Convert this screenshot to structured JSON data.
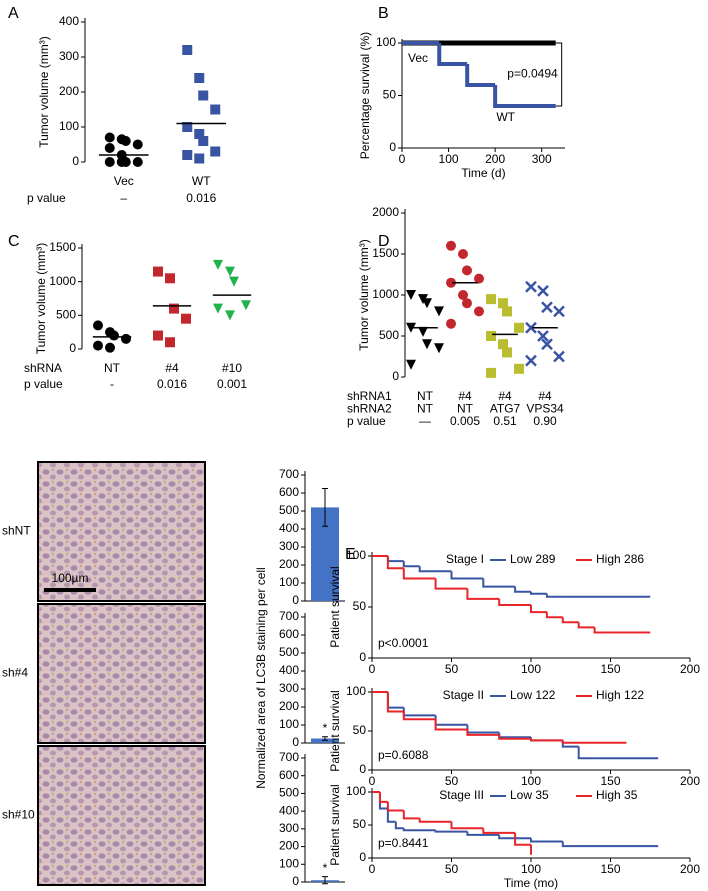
{
  "chart_data": [
    {
      "type": "dot",
      "panel": "A",
      "ylabel": "Tumor volume (mm³)",
      "ylim": [
        0,
        400
      ],
      "yticks": [
        0,
        100,
        200,
        300,
        400
      ],
      "groups": [
        {
          "name": "Vec",
          "color": "#000000",
          "marker": "circle",
          "values": [
            70,
            65,
            60,
            50,
            40,
            20,
            0,
            0,
            0,
            0
          ],
          "mean": 20
        },
        {
          "name": "WT",
          "color": "#3a54a4",
          "marker": "square",
          "values": [
            320,
            240,
            190,
            150,
            100,
            80,
            60,
            30,
            20,
            10
          ],
          "mean": 110
        }
      ],
      "rows": [
        {
          "label": "p value",
          "values": [
            "–",
            "0.016"
          ]
        }
      ]
    },
    {
      "type": "line",
      "panel": "B",
      "step": true,
      "ylabel": "Percentage survival (%)",
      "xlabel": "Time (d)",
      "annotation": "p=0.0494",
      "xlim": [
        0,
        350
      ],
      "xticks": [
        0,
        100,
        200,
        300
      ],
      "ylim": [
        0,
        100
      ],
      "yticks": [
        0,
        50,
        100
      ],
      "series": [
        {
          "name": "Vec",
          "color": "#000000",
          "x": [
            0,
            330
          ],
          "values": [
            100,
            100
          ]
        },
        {
          "name": "WT",
          "color": "#3a54a4",
          "x": [
            0,
            80,
            140,
            200,
            330
          ],
          "values": [
            100,
            80,
            60,
            40,
            40
          ]
        }
      ]
    },
    {
      "type": "dot",
      "panel": "C",
      "ylabel": "Tumor volume (mm³)",
      "ylim": [
        0,
        1500
      ],
      "yticks": [
        0,
        500,
        1000,
        1500
      ],
      "groups": [
        {
          "color": "#000000",
          "marker": "circle",
          "values": [
            350,
            250,
            200,
            150,
            50,
            20
          ],
          "mean": 180
        },
        {
          "color": "#c1272d",
          "marker": "square",
          "values": [
            1150,
            1050,
            600,
            450,
            200,
            100
          ],
          "mean": 640
        },
        {
          "color": "#22b24c",
          "marker": "triangle",
          "values": [
            1250,
            1150,
            1000,
            650,
            600,
            500
          ],
          "mean": 800
        }
      ],
      "rows": [
        {
          "label": "shRNA",
          "values": [
            "NT",
            "#4",
            "#10"
          ]
        },
        {
          "label": "p value",
          "values": [
            "-",
            "0.016",
            "0.001"
          ]
        }
      ]
    },
    {
      "type": "dot",
      "panel": "D",
      "ylabel": "Tumor volume (mm³)",
      "ylim": [
        0,
        2000
      ],
      "yticks": [
        0,
        500,
        1000,
        1500,
        2000
      ],
      "groups": [
        {
          "color": "#000000",
          "marker": "triangle",
          "values": [
            1000,
            950,
            900,
            800,
            600,
            550,
            400,
            350,
            150
          ],
          "mean": 600
        },
        {
          "color": "#c1272d",
          "marker": "circle",
          "values": [
            1600,
            1500,
            1300,
            1200,
            1150,
            1000,
            900,
            800,
            650
          ],
          "mean": 1150
        },
        {
          "color": "#b9bd2f",
          "marker": "square",
          "values": [
            950,
            900,
            800,
            600,
            500,
            400,
            300,
            100,
            50
          ],
          "mean": 520
        },
        {
          "color": "#3a54a4",
          "marker": "cross",
          "values": [
            1100,
            1050,
            850,
            800,
            600,
            500,
            400,
            250,
            200
          ],
          "mean": 600
        }
      ],
      "rows": [
        {
          "label": "shRNA1",
          "values": [
            "NT",
            "#4",
            "#4",
            "#4"
          ]
        },
        {
          "label": "shRNA2",
          "values": [
            "NT",
            "NT",
            "ATG7",
            "VPS34"
          ]
        },
        {
          "label": "p value",
          "values": [
            "—",
            "0.005",
            "0.51",
            "0.90"
          ]
        }
      ]
    },
    {
      "type": "bar",
      "ylabel": "Normalized area of LC3B staining per cell",
      "color": "#4472c4",
      "ylim": [
        0,
        700
      ],
      "yticks": [
        0,
        100,
        200,
        300,
        400,
        500,
        600,
        700
      ],
      "values": [
        520
      ],
      "errors": [
        105
      ]
    },
    {
      "type": "bar",
      "color": "#4472c4",
      "annotation": "*",
      "ylim": [
        0,
        700
      ],
      "yticks": [
        0,
        100,
        200,
        300,
        400,
        500,
        600,
        700
      ],
      "values": [
        25
      ],
      "errors": [
        10
      ]
    },
    {
      "type": "bar",
      "color": "#4472c4",
      "annotation": "*",
      "ylim": [
        0,
        700
      ],
      "yticks": [
        0,
        100,
        200,
        300,
        400,
        500,
        600,
        700
      ],
      "values": [
        10
      ],
      "errors": [
        20
      ]
    },
    {
      "type": "line",
      "panel": "E",
      "step": true,
      "title": "Stage I",
      "ylabel": "Patient survival",
      "annotation": "p<0.0001",
      "xlim": [
        0,
        200
      ],
      "xticks": [
        0,
        50,
        100,
        150,
        200
      ],
      "ylim": [
        0,
        100
      ],
      "yticks": [
        0,
        50,
        100
      ],
      "series": [
        {
          "name": "Low 289",
          "color": "#3a54a4",
          "x": [
            0,
            10,
            20,
            30,
            50,
            70,
            90,
            100,
            110,
            120,
            175
          ],
          "values": [
            100,
            95,
            90,
            85,
            78,
            70,
            65,
            63,
            60,
            60,
            60
          ]
        },
        {
          "name": "High 286",
          "color": "#e8262a",
          "x": [
            0,
            10,
            20,
            40,
            60,
            80,
            100,
            110,
            120,
            130,
            140,
            175
          ],
          "values": [
            100,
            88,
            78,
            68,
            58,
            52,
            45,
            40,
            35,
            30,
            25,
            25
          ]
        }
      ]
    },
    {
      "type": "line",
      "step": true,
      "title": "Stage II",
      "ylabel": "Patient survival",
      "annotation": "p=0.6088",
      "xlim": [
        0,
        200
      ],
      "xticks": [
        0,
        50,
        100,
        150,
        200
      ],
      "ylim": [
        0,
        100
      ],
      "yticks": [
        0,
        50,
        100
      ],
      "series": [
        {
          "name": "Low 122",
          "color": "#3a54a4",
          "x": [
            0,
            10,
            20,
            40,
            60,
            80,
            100,
            120,
            130,
            140,
            180
          ],
          "values": [
            100,
            80,
            70,
            58,
            48,
            42,
            38,
            30,
            15,
            15,
            15
          ]
        },
        {
          "name": "High 122",
          "color": "#e8262a",
          "x": [
            0,
            10,
            20,
            40,
            60,
            80,
            100,
            120,
            160
          ],
          "values": [
            100,
            75,
            65,
            52,
            45,
            40,
            38,
            35,
            35
          ]
        }
      ]
    },
    {
      "type": "line",
      "step": true,
      "title": "Stage III",
      "ylabel": "Patient survival",
      "xlabel": "Time (mo)",
      "annotation": "p=0.8441",
      "xlim": [
        0,
        200
      ],
      "xticks": [
        0,
        50,
        100,
        150,
        200
      ],
      "ylim": [
        0,
        100
      ],
      "yticks": [
        0,
        50,
        100
      ],
      "series": [
        {
          "name": "Low 35",
          "color": "#3a54a4",
          "x": [
            0,
            5,
            10,
            15,
            20,
            40,
            60,
            80,
            100,
            120,
            180
          ],
          "values": [
            100,
            75,
            55,
            45,
            42,
            40,
            35,
            30,
            25,
            18,
            18
          ]
        },
        {
          "name": "High 35",
          "color": "#e8262a",
          "x": [
            0,
            5,
            10,
            20,
            30,
            50,
            70,
            90,
            100
          ],
          "values": [
            100,
            85,
            72,
            60,
            55,
            45,
            38,
            20,
            5
          ]
        }
      ]
    }
  ],
  "micrographs": {
    "labels": [
      "shNT",
      "sh#4",
      "sh#10"
    ],
    "label_colors": [
      "#444444",
      "#c1272d",
      "#22b24c"
    ],
    "scale_bar": "100µm"
  }
}
